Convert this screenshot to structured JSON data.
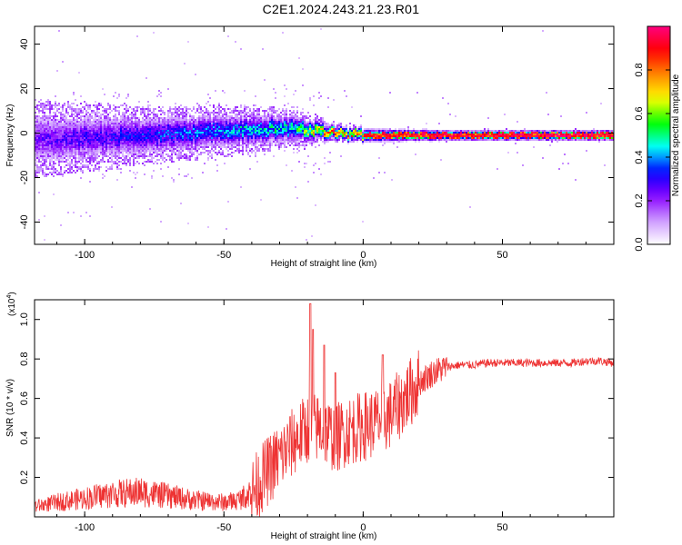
{
  "title": "C2E1.2024.243.21.23.R01",
  "chart_data": [
    {
      "type": "heatmap",
      "xlabel": "Height of straight line (km)",
      "ylabel": "Frequency (Hz)",
      "xlim": [
        -118,
        90
      ],
      "ylim": [
        -50,
        48
      ],
      "x_ticks": [
        -100,
        -50,
        0,
        50
      ],
      "y_ticks": [
        -40,
        -20,
        0,
        20,
        40
      ],
      "colorbar": {
        "label": "Normalized spectral amplitude",
        "range": [
          0,
          1
        ],
        "ticks": [
          0.0,
          0.2,
          0.4,
          0.6,
          0.8
        ],
        "tick_labels": [
          "0.0",
          "0.2",
          "0.4",
          "0.6",
          "0.8"
        ],
        "colormap": [
          "#ffffff",
          "#cc99ff",
          "#8800ff",
          "#0000ff",
          "#00ffff",
          "#00ff00",
          "#ffff00",
          "#ff8800",
          "#ff0000",
          "#ff0080"
        ]
      },
      "ridge": {
        "description_free_profile": [
          {
            "x": -118,
            "center": -3,
            "halfwidth": 8,
            "amplitude": 0.22
          },
          {
            "x": -80,
            "center": -1,
            "halfwidth": 6,
            "amplitude": 0.3
          },
          {
            "x": -50,
            "center": 1,
            "halfwidth": 5,
            "amplitude": 0.38
          },
          {
            "x": -25,
            "center": 2,
            "halfwidth": 4,
            "amplitude": 0.45
          },
          {
            "x": -10,
            "center": 0,
            "halfwidth": 2,
            "amplitude": 0.8
          },
          {
            "x": 0,
            "center": -1,
            "halfwidth": 2,
            "amplitude": 0.7
          },
          {
            "x": 30,
            "center": -1,
            "halfwidth": 1.5,
            "amplitude": 0.85
          },
          {
            "x": 90,
            "center": -1,
            "halfwidth": 1.5,
            "amplitude": 0.95
          }
        ]
      }
    },
    {
      "type": "line",
      "xlabel": "Height of straight line (km)",
      "ylabel": "SNR (10 * v/v)",
      "y_scale_label": "(x10",
      "y_scale_exp": "4",
      "y_scale_close": ")",
      "xlim": [
        -118,
        90
      ],
      "ylim": [
        0,
        1.1
      ],
      "x_ticks": [
        -100,
        -50,
        0,
        50
      ],
      "y_ticks": [
        0.2,
        0.4,
        0.6,
        0.8,
        1.0
      ],
      "line_color": "#ee3333",
      "series": [
        {
          "x": [
            -118,
            -110,
            -100,
            -90,
            -80,
            -70,
            -60,
            -50,
            -45,
            -40,
            -35,
            -30,
            -25,
            -20,
            -15,
            -10,
            -5,
            0,
            5,
            10,
            15,
            20,
            25,
            30,
            35,
            40,
            45,
            50,
            55,
            60,
            65,
            70,
            75,
            80,
            85,
            90
          ],
          "values": [
            0.05,
            0.07,
            0.09,
            0.11,
            0.12,
            0.1,
            0.08,
            0.07,
            0.08,
            0.12,
            0.22,
            0.3,
            0.38,
            0.45,
            0.45,
            0.4,
            0.44,
            0.46,
            0.48,
            0.52,
            0.6,
            0.68,
            0.73,
            0.76,
            0.77,
            0.77,
            0.78,
            0.78,
            0.78,
            0.78,
            0.78,
            0.78,
            0.78,
            0.79,
            0.79,
            0.78
          ]
        }
      ],
      "spikes": [
        {
          "x": -19,
          "value": 1.08
        },
        {
          "x": -18,
          "value": 0.95
        },
        {
          "x": -14,
          "value": 0.87
        },
        {
          "x": -10,
          "value": 0.73
        },
        {
          "x": 7,
          "value": 0.82
        }
      ]
    }
  ]
}
